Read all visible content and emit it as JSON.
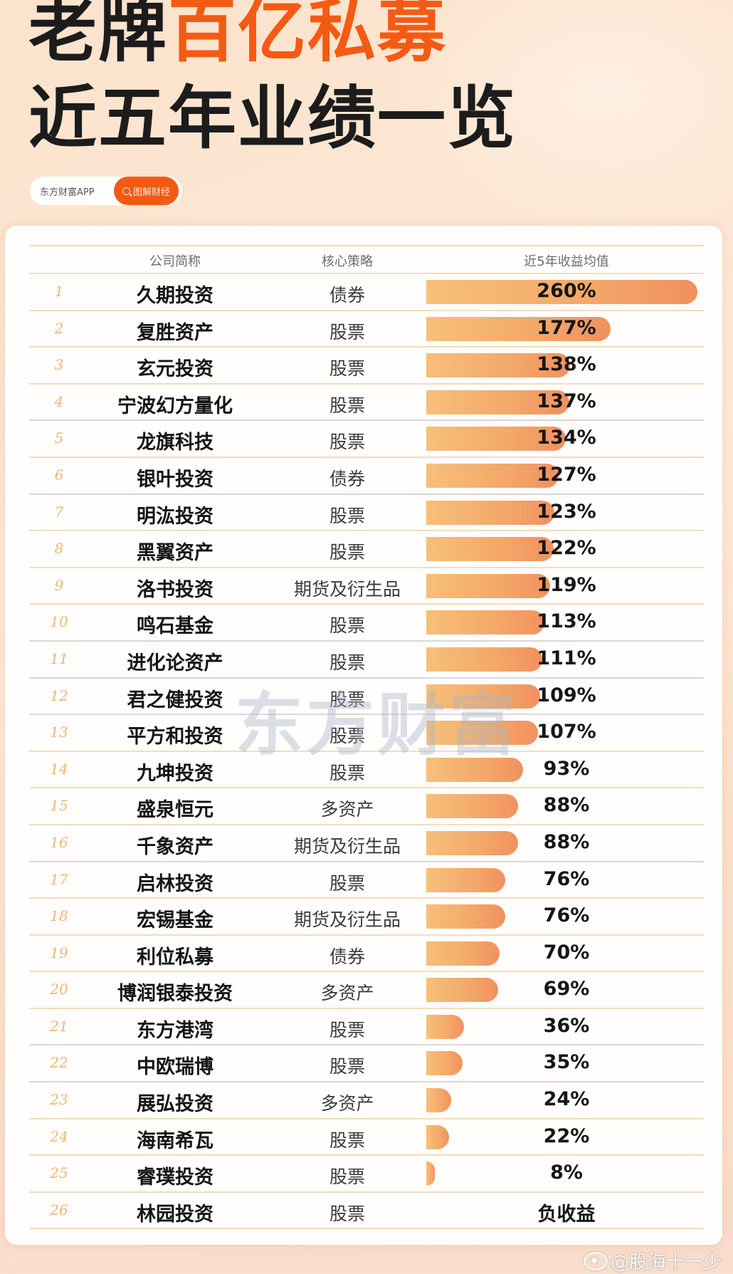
{
  "header": {
    "title_line1_plain": "老牌",
    "title_line1_accent": "百亿私募",
    "title_line2": "近五年业绩一览",
    "source_label": "东方财富APP",
    "source_button": "图解财经"
  },
  "table": {
    "columns": [
      "公司简称",
      "核心策略",
      "近5年收益均值"
    ]
  },
  "watermarks": {
    "center": "东方财富",
    "weibo": "@股海十一少"
  },
  "colors": {
    "accent": "#f55a14",
    "bar_start": "#f6c07a",
    "bar_end": "#f19060",
    "rank": "#f0b574"
  },
  "chart_data": {
    "type": "bar",
    "orientation": "horizontal",
    "title": "老牌百亿私募近五年业绩一览",
    "xlabel": "近5年收益均值 (%)",
    "ylabel": "公司简称",
    "grid": false,
    "legend": "none",
    "categories": [
      "久期投资",
      "复胜资产",
      "玄元投资",
      "宁波幻方量化",
      "龙旗科技",
      "银叶投资",
      "明汯投资",
      "黑翼资产",
      "洛书投资",
      "鸣石基金",
      "进化论资产",
      "君之健投资",
      "平方和投资",
      "九坤投资",
      "盛泉恒元",
      "千象资产",
      "启林投资",
      "宏锡基金",
      "利位私募",
      "博润银泰投资",
      "东方港湾",
      "中欧瑞博",
      "展弘投资",
      "海南希瓦",
      "睿璞投资",
      "林园投资"
    ],
    "values": [
      260,
      177,
      138,
      137,
      134,
      127,
      123,
      122,
      119,
      113,
      111,
      109,
      107,
      93,
      88,
      88,
      76,
      76,
      70,
      69,
      36,
      35,
      24,
      22,
      8,
      null
    ],
    "xlim": [
      0,
      260
    ]
  },
  "rows": [
    {
      "rank": "1",
      "name": "久期投资",
      "strategy": "债券",
      "value": 260,
      "label": "260%"
    },
    {
      "rank": "2",
      "name": "复胜资产",
      "strategy": "股票",
      "value": 177,
      "label": "177%"
    },
    {
      "rank": "3",
      "name": "玄元投资",
      "strategy": "股票",
      "value": 138,
      "label": "138%"
    },
    {
      "rank": "4",
      "name": "宁波幻方量化",
      "strategy": "股票",
      "value": 137,
      "label": "137%"
    },
    {
      "rank": "5",
      "name": "龙旗科技",
      "strategy": "股票",
      "value": 134,
      "label": "134%"
    },
    {
      "rank": "6",
      "name": "银叶投资",
      "strategy": "债券",
      "value": 127,
      "label": "127%"
    },
    {
      "rank": "7",
      "name": "明汯投资",
      "strategy": "股票",
      "value": 123,
      "label": "123%"
    },
    {
      "rank": "8",
      "name": "黑翼资产",
      "strategy": "股票",
      "value": 122,
      "label": "122%"
    },
    {
      "rank": "9",
      "name": "洛书投资",
      "strategy": "期货及衍生品",
      "value": 119,
      "label": "119%"
    },
    {
      "rank": "10",
      "name": "鸣石基金",
      "strategy": "股票",
      "value": 113,
      "label": "113%"
    },
    {
      "rank": "11",
      "name": "进化论资产",
      "strategy": "股票",
      "value": 111,
      "label": "111%"
    },
    {
      "rank": "12",
      "name": "君之健投资",
      "strategy": "股票",
      "value": 109,
      "label": "109%"
    },
    {
      "rank": "13",
      "name": "平方和投资",
      "strategy": "股票",
      "value": 107,
      "label": "107%"
    },
    {
      "rank": "14",
      "name": "九坤投资",
      "strategy": "股票",
      "value": 93,
      "label": "93%"
    },
    {
      "rank": "15",
      "name": "盛泉恒元",
      "strategy": "多资产",
      "value": 88,
      "label": "88%"
    },
    {
      "rank": "16",
      "name": "千象资产",
      "strategy": "期货及衍生品",
      "value": 88,
      "label": "88%"
    },
    {
      "rank": "17",
      "name": "启林投资",
      "strategy": "股票",
      "value": 76,
      "label": "76%"
    },
    {
      "rank": "18",
      "name": "宏锡基金",
      "strategy": "期货及衍生品",
      "value": 76,
      "label": "76%"
    },
    {
      "rank": "19",
      "name": "利位私募",
      "strategy": "债券",
      "value": 70,
      "label": "70%"
    },
    {
      "rank": "20",
      "name": "博润银泰投资",
      "strategy": "多资产",
      "value": 69,
      "label": "69%"
    },
    {
      "rank": "21",
      "name": "东方港湾",
      "strategy": "股票",
      "value": 36,
      "label": "36%"
    },
    {
      "rank": "22",
      "name": "中欧瑞博",
      "strategy": "股票",
      "value": 35,
      "label": "35%"
    },
    {
      "rank": "23",
      "name": "展弘投资",
      "strategy": "多资产",
      "value": 24,
      "label": "24%"
    },
    {
      "rank": "24",
      "name": "海南希瓦",
      "strategy": "股票",
      "value": 22,
      "label": "22%"
    },
    {
      "rank": "25",
      "name": "睿璞投资",
      "strategy": "股票",
      "value": 8,
      "label": "8%"
    },
    {
      "rank": "26",
      "name": "林园投资",
      "strategy": "股票",
      "value": 0,
      "label": "负收益"
    }
  ]
}
